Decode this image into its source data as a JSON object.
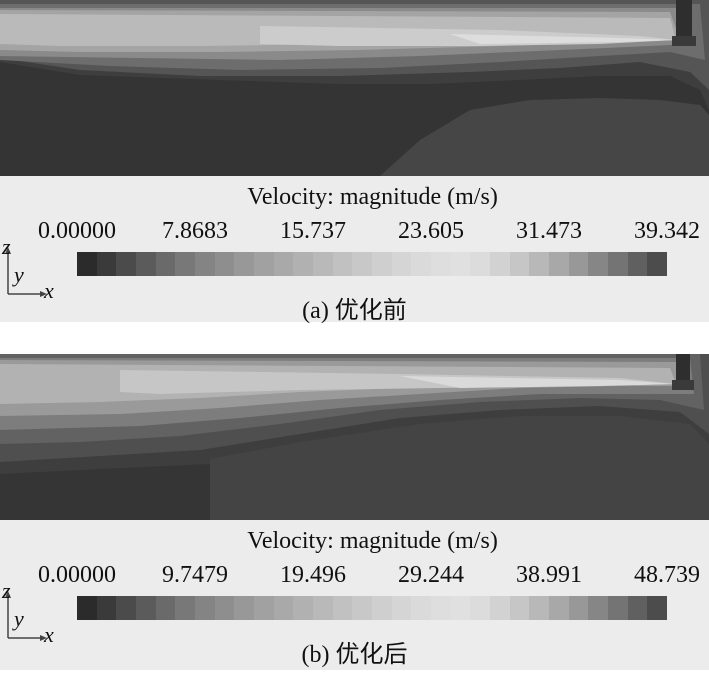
{
  "panels": [
    {
      "id": "a",
      "legend_title": "Velocity: magnitude (m/s)",
      "ticks": [
        "0.00000",
        "7.8683",
        "15.737",
        "23.605",
        "31.473",
        "39.342"
      ],
      "caption": "(a) 优化前",
      "axes": {
        "z": "z",
        "y": "y",
        "x": "x"
      }
    },
    {
      "id": "b",
      "legend_title": "Velocity: magnitude (m/s)",
      "ticks": [
        "0.00000",
        "9.7479",
        "19.496",
        "29.244",
        "38.991",
        "48.739"
      ],
      "caption": "(b) 优化后",
      "axes": {
        "z": "z",
        "y": "y",
        "x": "x"
      }
    }
  ],
  "colormap": [
    "#2b2b2b",
    "#3a3a3a",
    "#4b4b4b",
    "#5b5b5b",
    "#6a6a6a",
    "#787878",
    "#848484",
    "#8e8e8e",
    "#989898",
    "#a1a1a1",
    "#a9a9a9",
    "#b1b1b1",
    "#b9b9b9",
    "#c1c1c1",
    "#c8c8c8",
    "#cfcfcf",
    "#d5d5d5",
    "#dadada",
    "#dedede",
    "#e0e0e0",
    "#dcdcdc",
    "#d2d2d2",
    "#c6c6c6",
    "#b8b8b8",
    "#a8a8a8",
    "#989898",
    "#868686",
    "#747474",
    "#606060",
    "#4c4c4c"
  ]
}
